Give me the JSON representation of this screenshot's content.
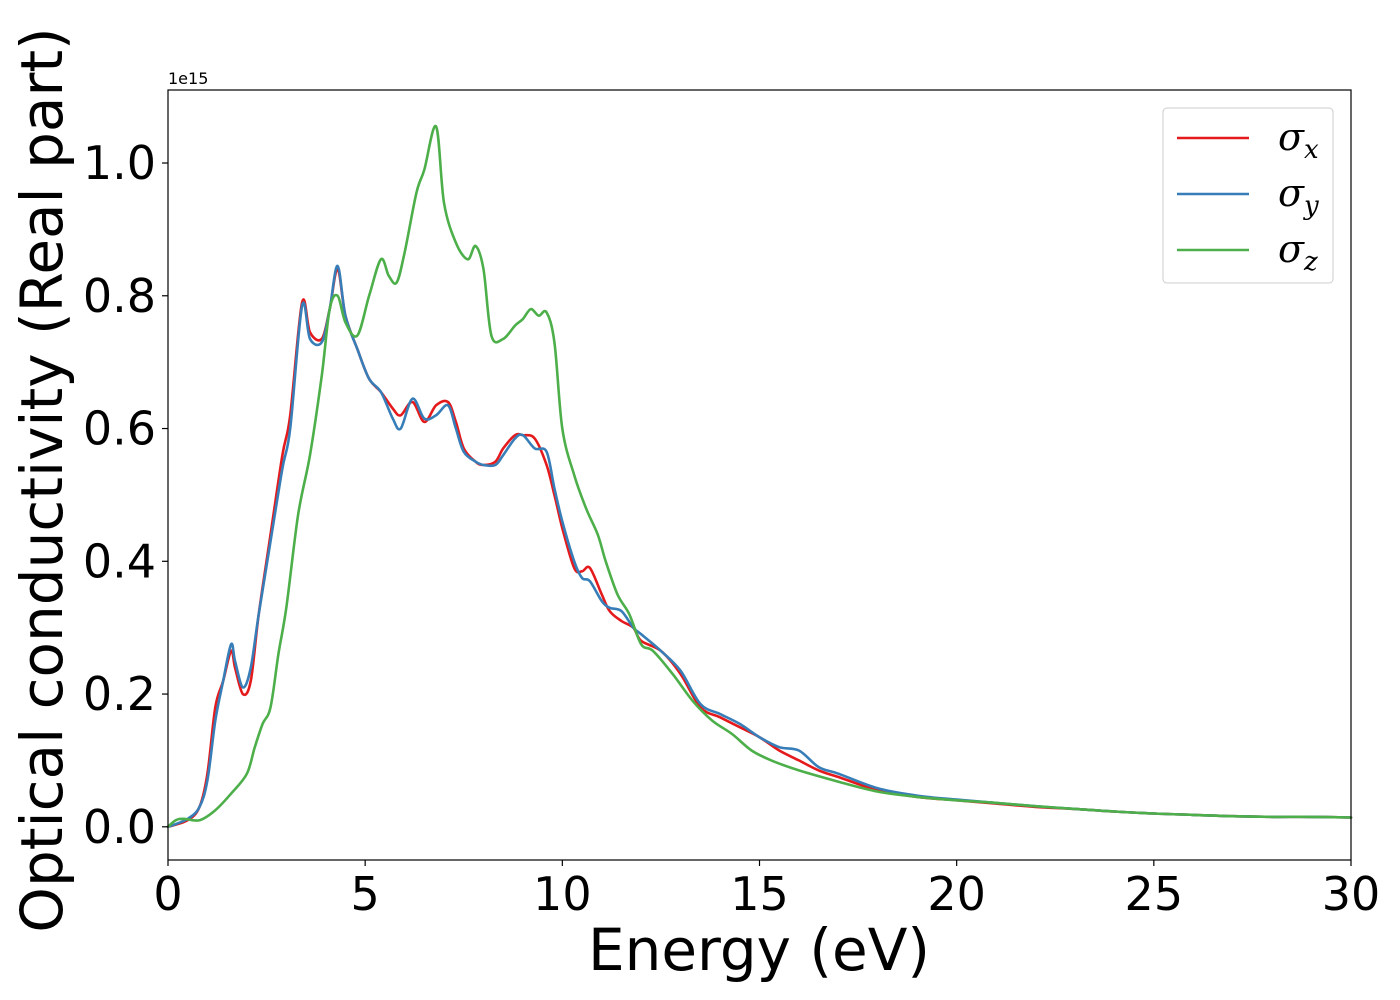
{
  "chart_data": {
    "type": "line",
    "xlabel": "Energy (eV)",
    "ylabel": "Optical conductivity (Real part)",
    "y_offset_label": "1e15",
    "xlim": [
      0,
      30
    ],
    "ylim": [
      -0.05,
      1.11
    ],
    "xticks": [
      0,
      5,
      10,
      15,
      20,
      25,
      30
    ],
    "xtick_labels": [
      "0",
      "5",
      "10",
      "15",
      "20",
      "25",
      "30"
    ],
    "yticks": [
      0.0,
      0.2,
      0.4,
      0.6,
      0.8,
      1.0
    ],
    "ytick_labels": [
      "0.0",
      "0.2",
      "0.4",
      "0.6",
      "0.8",
      "1.0"
    ],
    "grid": false,
    "legend_position": "top-right",
    "series": [
      {
        "name": "σx",
        "symbol": "σ",
        "subscript": "x",
        "color": "#e41a1c",
        "x": [
          0,
          0.5,
          0.8,
          1.0,
          1.2,
          1.4,
          1.6,
          1.7,
          1.9,
          2.1,
          2.3,
          2.6,
          2.9,
          3.1,
          3.4,
          3.6,
          3.9,
          4.1,
          4.3,
          4.5,
          4.8,
          5.1,
          5.4,
          5.7,
          5.9,
          6.2,
          6.5,
          6.8,
          7.1,
          7.3,
          7.5,
          7.8,
          8.0,
          8.3,
          8.5,
          8.8,
          9.0,
          9.3,
          9.6,
          9.8,
          10.0,
          10.3,
          10.5,
          10.7,
          11.0,
          11.2,
          11.5,
          11.8,
          12.0,
          12.5,
          13.0,
          13.5,
          14.0,
          14.5,
          15.0,
          15.5,
          16.0,
          16.5,
          17.0,
          18.0,
          19.0,
          20.0,
          21.0,
          22.0,
          23.0,
          24.0,
          25.0,
          26.0,
          27.0,
          28.0,
          29.0,
          30.0
        ],
        "y": [
          0.0,
          0.01,
          0.03,
          0.08,
          0.18,
          0.22,
          0.265,
          0.24,
          0.2,
          0.22,
          0.32,
          0.44,
          0.56,
          0.62,
          0.79,
          0.745,
          0.735,
          0.78,
          0.84,
          0.77,
          0.72,
          0.675,
          0.655,
          0.63,
          0.62,
          0.64,
          0.61,
          0.635,
          0.64,
          0.61,
          0.57,
          0.55,
          0.545,
          0.55,
          0.57,
          0.59,
          0.59,
          0.585,
          0.545,
          0.5,
          0.45,
          0.39,
          0.385,
          0.39,
          0.35,
          0.325,
          0.31,
          0.3,
          0.28,
          0.265,
          0.23,
          0.18,
          0.165,
          0.15,
          0.135,
          0.115,
          0.1,
          0.085,
          0.075,
          0.055,
          0.045,
          0.04,
          0.035,
          0.03,
          0.027,
          0.023,
          0.02,
          0.018,
          0.016,
          0.015,
          0.015,
          0.014
        ]
      },
      {
        "name": "σy",
        "symbol": "σ",
        "subscript": "y",
        "color": "#377eb8",
        "x": [
          0,
          0.5,
          0.8,
          1.0,
          1.2,
          1.4,
          1.6,
          1.7,
          1.9,
          2.1,
          2.3,
          2.6,
          2.9,
          3.1,
          3.4,
          3.6,
          3.9,
          4.1,
          4.3,
          4.5,
          4.8,
          5.1,
          5.4,
          5.7,
          5.9,
          6.2,
          6.5,
          6.8,
          7.1,
          7.3,
          7.5,
          7.8,
          8.0,
          8.3,
          8.5,
          8.8,
          9.0,
          9.3,
          9.6,
          9.8,
          10.0,
          10.3,
          10.5,
          10.7,
          11.0,
          11.2,
          11.5,
          11.8,
          12.0,
          12.5,
          13.0,
          13.5,
          14.0,
          14.5,
          15.0,
          15.5,
          16.0,
          16.5,
          17.0,
          18.0,
          19.0,
          20.0,
          21.0,
          22.0,
          23.0,
          24.0,
          25.0,
          26.0,
          27.0,
          28.0,
          29.0,
          30.0
        ],
        "y": [
          0.0,
          0.012,
          0.03,
          0.07,
          0.16,
          0.22,
          0.275,
          0.25,
          0.21,
          0.24,
          0.32,
          0.43,
          0.54,
          0.6,
          0.785,
          0.735,
          0.73,
          0.78,
          0.845,
          0.77,
          0.72,
          0.675,
          0.655,
          0.615,
          0.6,
          0.645,
          0.615,
          0.62,
          0.635,
          0.6,
          0.565,
          0.55,
          0.545,
          0.545,
          0.56,
          0.585,
          0.59,
          0.57,
          0.565,
          0.51,
          0.46,
          0.4,
          0.375,
          0.37,
          0.34,
          0.33,
          0.325,
          0.3,
          0.29,
          0.265,
          0.235,
          0.185,
          0.17,
          0.155,
          0.135,
          0.12,
          0.115,
          0.09,
          0.08,
          0.058,
          0.047,
          0.041,
          0.036,
          0.031,
          0.027,
          0.023,
          0.02,
          0.018,
          0.016,
          0.015,
          0.015,
          0.014
        ]
      },
      {
        "name": "σz",
        "symbol": "σ",
        "subscript": "z",
        "color": "#4daf4a",
        "x": [
          0,
          0.2,
          0.4,
          0.8,
          1.2,
          1.6,
          2.0,
          2.2,
          2.4,
          2.6,
          2.8,
          3.0,
          3.3,
          3.6,
          3.9,
          4.1,
          4.3,
          4.5,
          4.8,
          5.1,
          5.4,
          5.6,
          5.8,
          6.0,
          6.3,
          6.5,
          6.8,
          7.0,
          7.3,
          7.6,
          7.8,
          8.0,
          8.2,
          8.5,
          8.8,
          9.0,
          9.2,
          9.4,
          9.6,
          9.8,
          10.0,
          10.3,
          10.6,
          10.9,
          11.1,
          11.4,
          11.7,
          12.0,
          12.3,
          12.8,
          13.3,
          13.8,
          14.3,
          14.8,
          15.3,
          16.0,
          17.0,
          18.0,
          19.0,
          20.0,
          21.0,
          22.0,
          23.0,
          24.0,
          25.0,
          26.0,
          27.0,
          28.0,
          29.0,
          30.0
        ],
        "y": [
          0.0,
          0.01,
          0.012,
          0.01,
          0.025,
          0.05,
          0.08,
          0.12,
          0.155,
          0.18,
          0.26,
          0.33,
          0.47,
          0.56,
          0.68,
          0.78,
          0.8,
          0.76,
          0.74,
          0.8,
          0.855,
          0.83,
          0.82,
          0.865,
          0.955,
          0.99,
          1.055,
          0.94,
          0.88,
          0.855,
          0.875,
          0.84,
          0.74,
          0.735,
          0.755,
          0.765,
          0.78,
          0.77,
          0.775,
          0.73,
          0.6,
          0.53,
          0.48,
          0.44,
          0.4,
          0.35,
          0.32,
          0.275,
          0.265,
          0.23,
          0.19,
          0.16,
          0.14,
          0.115,
          0.1,
          0.085,
          0.068,
          0.053,
          0.045,
          0.04,
          0.036,
          0.031,
          0.027,
          0.023,
          0.02,
          0.018,
          0.016,
          0.015,
          0.015,
          0.014
        ]
      }
    ]
  }
}
